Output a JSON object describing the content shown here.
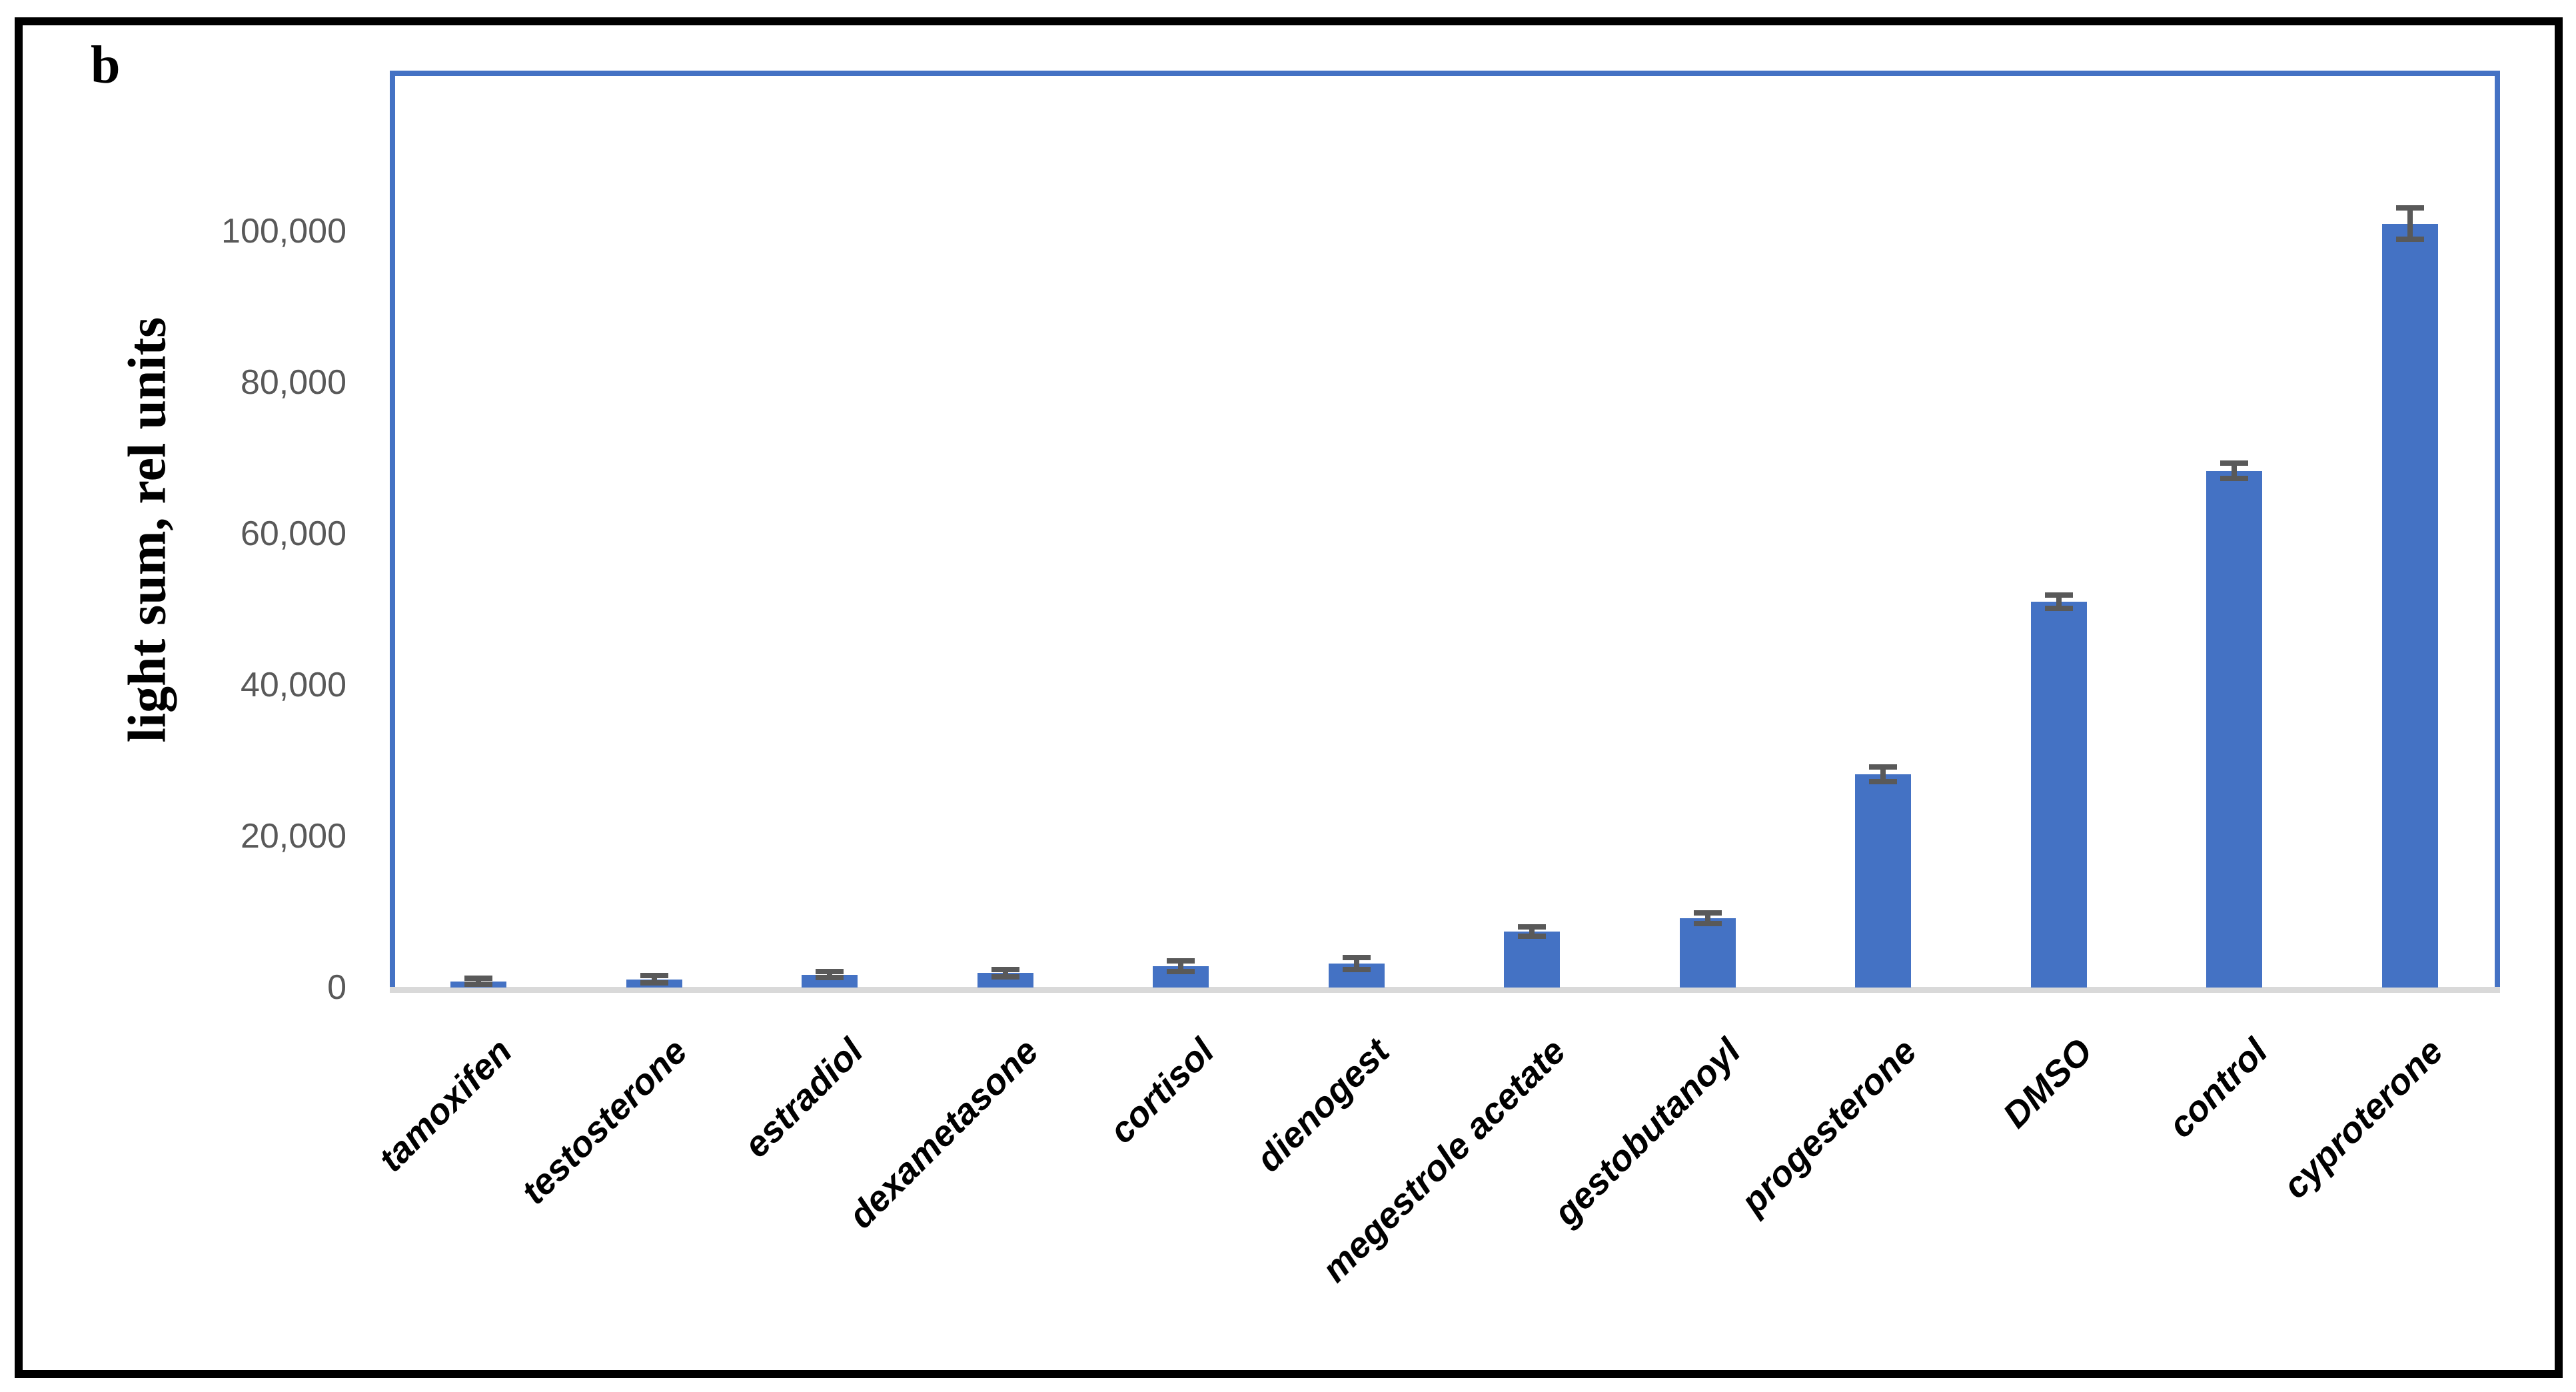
{
  "figure": {
    "panel_label": "b",
    "colors": {
      "bar_fill": "#4472C4",
      "plot_border": "#4472C4",
      "error_bar": "#595959",
      "axis_line": "#D9D9D9",
      "tick_text": "#595959",
      "category_text": "#000000",
      "outer_border": "#000000",
      "background": "#FFFFFF"
    }
  },
  "chart_data": {
    "type": "bar",
    "title": "",
    "xlabel": "",
    "ylabel": "light sum, rel units",
    "legend_position": "none",
    "grid": false,
    "ylim": [
      0,
      121200
    ],
    "y_ticks": [
      {
        "label": "0",
        "value": 0
      },
      {
        "label": "20,000",
        "value": 20000
      },
      {
        "label": "40,000",
        "value": 40000
      },
      {
        "label": "60,000",
        "value": 60000
      },
      {
        "label": "80,000",
        "value": 80000
      },
      {
        "label": "100,000",
        "value": 100000
      }
    ],
    "categories": [
      "tamoxifen",
      "testosterone",
      "estradiol",
      "dexametasone",
      "cortisol",
      "dienogest",
      "megestrole acetate",
      "gestobutanoyl",
      "progesterone",
      "DMSO",
      "control",
      "cyproterone"
    ],
    "series": [
      {
        "name": "light sum",
        "values": [
          800,
          1100,
          1700,
          1900,
          2800,
          3200,
          7400,
          9200,
          28200,
          51000,
          68300,
          101000
        ],
        "errors": [
          400,
          500,
          400,
          500,
          700,
          800,
          600,
          700,
          1000,
          900,
          1000,
          2100
        ]
      }
    ]
  }
}
